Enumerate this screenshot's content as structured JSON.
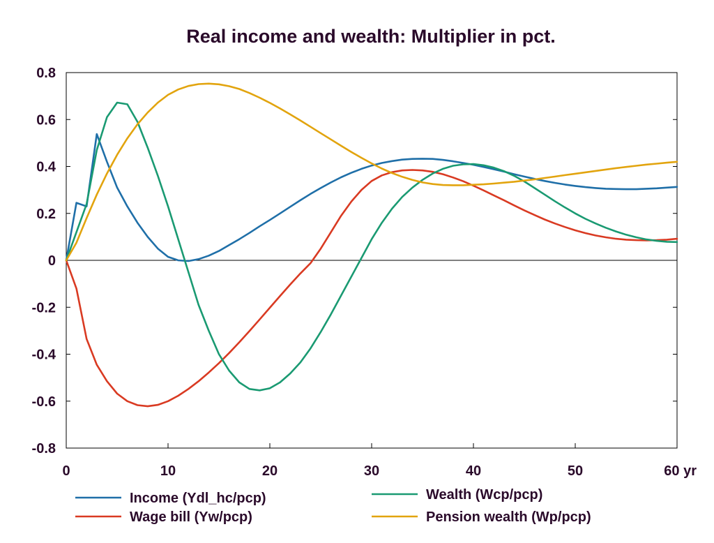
{
  "chart_data": {
    "type": "line",
    "title": "Real income and wealth: Multiplier in pct.",
    "x_unit_label": "yr",
    "xlim": [
      0,
      60
    ],
    "ylim": [
      -0.8,
      0.8
    ],
    "x_ticks": [
      0,
      10,
      20,
      30,
      40,
      50,
      60
    ],
    "y_ticks": [
      0.8,
      0.6,
      0.4,
      0.2,
      0,
      -0.2,
      -0.4,
      -0.6,
      -0.8
    ],
    "x_tick_labels": [
      "0",
      "10",
      "20",
      "30",
      "40",
      "50",
      "60 yr"
    ],
    "y_tick_labels": [
      "0.8",
      "0.6",
      "0.4",
      "0.2",
      "0",
      "-0.2",
      "-0.4",
      "-0.6",
      "-0.8"
    ],
    "grid": false,
    "zero_line": true,
    "legend_position": "bottom",
    "x": [
      0,
      1,
      2,
      3,
      4,
      5,
      6,
      7,
      8,
      9,
      10,
      11,
      12,
      13,
      14,
      15,
      16,
      17,
      18,
      19,
      20,
      21,
      22,
      23,
      24,
      25,
      26,
      27,
      28,
      29,
      30,
      31,
      32,
      33,
      34,
      35,
      36,
      37,
      38,
      39,
      40,
      41,
      42,
      43,
      44,
      45,
      46,
      47,
      48,
      49,
      50,
      51,
      52,
      53,
      54,
      55,
      56,
      57,
      58,
      59,
      60
    ],
    "series": [
      {
        "name": "Income (Ydl_hc/pcp)",
        "color": "#1f6fa8",
        "values": [
          0.0,
          0.245,
          0.23,
          0.538,
          0.42,
          0.31,
          0.23,
          0.16,
          0.1,
          0.05,
          0.015,
          0.0,
          -0.003,
          0.005,
          0.02,
          0.04,
          0.065,
          0.09,
          0.117,
          0.145,
          0.172,
          0.2,
          0.228,
          0.256,
          0.283,
          0.308,
          0.332,
          0.354,
          0.373,
          0.39,
          0.404,
          0.415,
          0.423,
          0.429,
          0.432,
          0.433,
          0.432,
          0.428,
          0.422,
          0.415,
          0.407,
          0.398,
          0.388,
          0.378,
          0.367,
          0.357,
          0.347,
          0.338,
          0.33,
          0.323,
          0.317,
          0.312,
          0.308,
          0.305,
          0.304,
          0.303,
          0.303,
          0.305,
          0.307,
          0.31,
          0.313
        ]
      },
      {
        "name": "Wage bill (Yw/pcp)",
        "color": "#d93a22",
        "values": [
          0.0,
          -0.12,
          -0.335,
          -0.445,
          -0.515,
          -0.568,
          -0.6,
          -0.617,
          -0.622,
          -0.616,
          -0.6,
          -0.577,
          -0.548,
          -0.515,
          -0.478,
          -0.438,
          -0.395,
          -0.349,
          -0.301,
          -0.252,
          -0.202,
          -0.152,
          -0.103,
          -0.056,
          -0.012,
          0.05,
          0.12,
          0.19,
          0.25,
          0.3,
          0.338,
          0.362,
          0.376,
          0.383,
          0.385,
          0.383,
          0.377,
          0.367,
          0.353,
          0.337,
          0.318,
          0.298,
          0.277,
          0.256,
          0.234,
          0.213,
          0.193,
          0.174,
          0.157,
          0.142,
          0.128,
          0.116,
          0.106,
          0.098,
          0.092,
          0.088,
          0.086,
          0.085,
          0.086,
          0.088,
          0.092
        ]
      },
      {
        "name": "Wealth (Wcp/pcp)",
        "color": "#1a9a72",
        "values": [
          0.0,
          0.12,
          0.24,
          0.47,
          0.61,
          0.672,
          0.665,
          0.59,
          0.48,
          0.36,
          0.23,
          0.09,
          -0.05,
          -0.19,
          -0.3,
          -0.4,
          -0.47,
          -0.52,
          -0.548,
          -0.554,
          -0.545,
          -0.52,
          -0.482,
          -0.435,
          -0.375,
          -0.305,
          -0.23,
          -0.15,
          -0.07,
          0.01,
          0.09,
          0.16,
          0.22,
          0.27,
          0.31,
          0.343,
          0.37,
          0.39,
          0.403,
          0.409,
          0.41,
          0.405,
          0.395,
          0.38,
          0.36,
          0.336,
          0.308,
          0.28,
          0.252,
          0.225,
          0.2,
          0.177,
          0.157,
          0.139,
          0.123,
          0.109,
          0.098,
          0.089,
          0.083,
          0.079,
          0.078
        ]
      },
      {
        "name": "Pension wealth (Wp/pcp)",
        "color": "#e2a40e",
        "values": [
          0.0,
          0.075,
          0.18,
          0.28,
          0.37,
          0.45,
          0.52,
          0.58,
          0.63,
          0.672,
          0.705,
          0.728,
          0.743,
          0.751,
          0.753,
          0.75,
          0.742,
          0.73,
          0.713,
          0.693,
          0.671,
          0.647,
          0.622,
          0.596,
          0.569,
          0.542,
          0.515,
          0.488,
          0.462,
          0.437,
          0.413,
          0.391,
          0.372,
          0.356,
          0.343,
          0.332,
          0.325,
          0.321,
          0.32,
          0.32,
          0.322,
          0.324,
          0.327,
          0.331,
          0.335,
          0.34,
          0.345,
          0.351,
          0.357,
          0.363,
          0.369,
          0.375,
          0.381,
          0.387,
          0.393,
          0.398,
          0.403,
          0.408,
          0.412,
          0.416,
          0.42
        ]
      }
    ]
  }
}
